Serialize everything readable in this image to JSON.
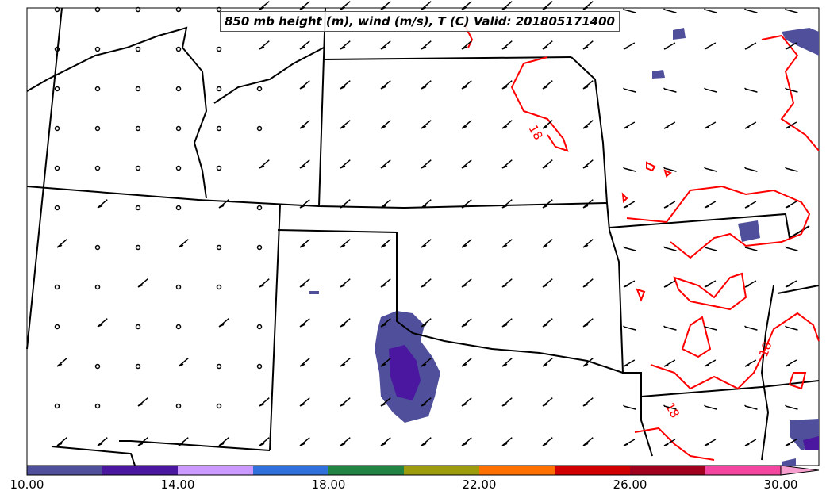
{
  "title": "850 mb height (m), wind (m/s), T (C) Valid: 201805171400",
  "contour_labels": [
    "18",
    "18",
    "18",
    "18"
  ],
  "colorbar": {
    "ticks": [
      "10.00",
      "14.00",
      "18.00",
      "22.00",
      "26.00",
      "30.00"
    ],
    "min": 10,
    "max": 30,
    "step": 2,
    "colors": [
      "#4f4f9b",
      "#4b17a0",
      "#cc99ff",
      "#3070dc",
      "#228442",
      "#9c9c0c",
      "#ff7000",
      "#d00000",
      "#a0001e",
      "#f445a0"
    ],
    "extend_color": "#f7a0d0"
  },
  "colors": {
    "temperature_contour": "#ff0000",
    "boundaries": "#000000"
  }
}
